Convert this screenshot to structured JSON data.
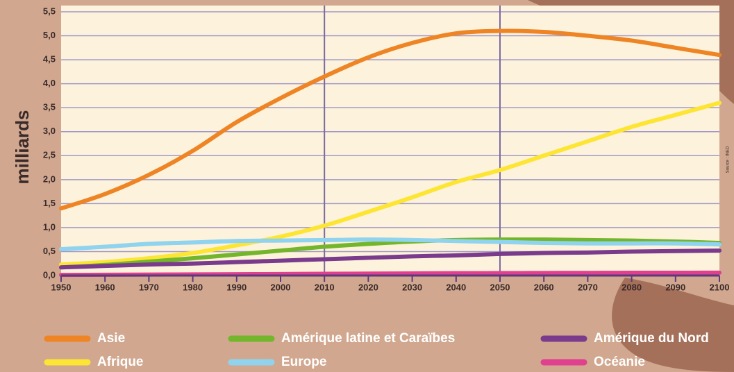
{
  "chart_data": {
    "type": "line",
    "y_label": "milliards",
    "source": "Source : INED",
    "x": [
      1950,
      1960,
      1970,
      1980,
      1990,
      2000,
      2010,
      2020,
      2030,
      2040,
      2050,
      2060,
      2070,
      2080,
      2090,
      2100
    ],
    "series": [
      {
        "name": "Asie",
        "color": "#ee8424",
        "values": [
          1.4,
          1.7,
          2.1,
          2.6,
          3.2,
          3.7,
          4.15,
          4.55,
          4.85,
          5.05,
          5.1,
          5.08,
          5.0,
          4.9,
          4.75,
          4.6
        ]
      },
      {
        "name": "Afrique",
        "color": "#fde534",
        "values": [
          0.23,
          0.28,
          0.36,
          0.47,
          0.63,
          0.81,
          1.04,
          1.33,
          1.63,
          1.95,
          2.2,
          2.5,
          2.8,
          3.1,
          3.35,
          3.6
        ]
      },
      {
        "name": "Amérique latine et Caraïbes",
        "color": "#73b62c",
        "values": [
          0.17,
          0.22,
          0.29,
          0.36,
          0.44,
          0.52,
          0.6,
          0.66,
          0.71,
          0.74,
          0.75,
          0.75,
          0.74,
          0.73,
          0.71,
          0.68
        ]
      },
      {
        "name": "Europe",
        "color": "#8fd3ee",
        "values": [
          0.55,
          0.6,
          0.66,
          0.69,
          0.72,
          0.73,
          0.74,
          0.75,
          0.74,
          0.72,
          0.7,
          0.68,
          0.67,
          0.67,
          0.67,
          0.65
        ]
      },
      {
        "name": "Amérique du Nord",
        "color": "#7a3b8c",
        "values": [
          0.17,
          0.2,
          0.23,
          0.25,
          0.28,
          0.31,
          0.34,
          0.37,
          0.4,
          0.42,
          0.45,
          0.47,
          0.48,
          0.5,
          0.51,
          0.52
        ]
      },
      {
        "name": "Océanie",
        "color": "#e0408d",
        "values": [
          0.013,
          0.016,
          0.02,
          0.023,
          0.027,
          0.031,
          0.036,
          0.04,
          0.044,
          0.048,
          0.05,
          0.053,
          0.055,
          0.057,
          0.058,
          0.06
        ]
      }
    ],
    "xlim": [
      1950,
      2100
    ],
    "xticks": [
      1950,
      1960,
      1970,
      1980,
      1990,
      2000,
      2010,
      2020,
      2030,
      2040,
      2050,
      2060,
      2070,
      2080,
      2090,
      2100
    ],
    "ylim": [
      0,
      5.5
    ],
    "yticks": [
      {
        "value": 0,
        "label": "0,0"
      },
      {
        "value": 0.5,
        "label": "0,5"
      },
      {
        "value": 1,
        "label": "1,0"
      },
      {
        "value": 1.5,
        "label": "1,5"
      },
      {
        "value": 2,
        "label": "2,0"
      },
      {
        "value": 2.5,
        "label": "2,5"
      },
      {
        "value": 3,
        "label": "3,0"
      },
      {
        "value": 3.5,
        "label": "3,5"
      },
      {
        "value": 4,
        "label": "4,0"
      },
      {
        "value": 4.5,
        "label": "4,5"
      },
      {
        "value": 5,
        "label": "5,0"
      },
      {
        "value": 5.5,
        "label": "5,5"
      }
    ],
    "vlines": [
      2010,
      2050
    ],
    "grid": true
  }
}
